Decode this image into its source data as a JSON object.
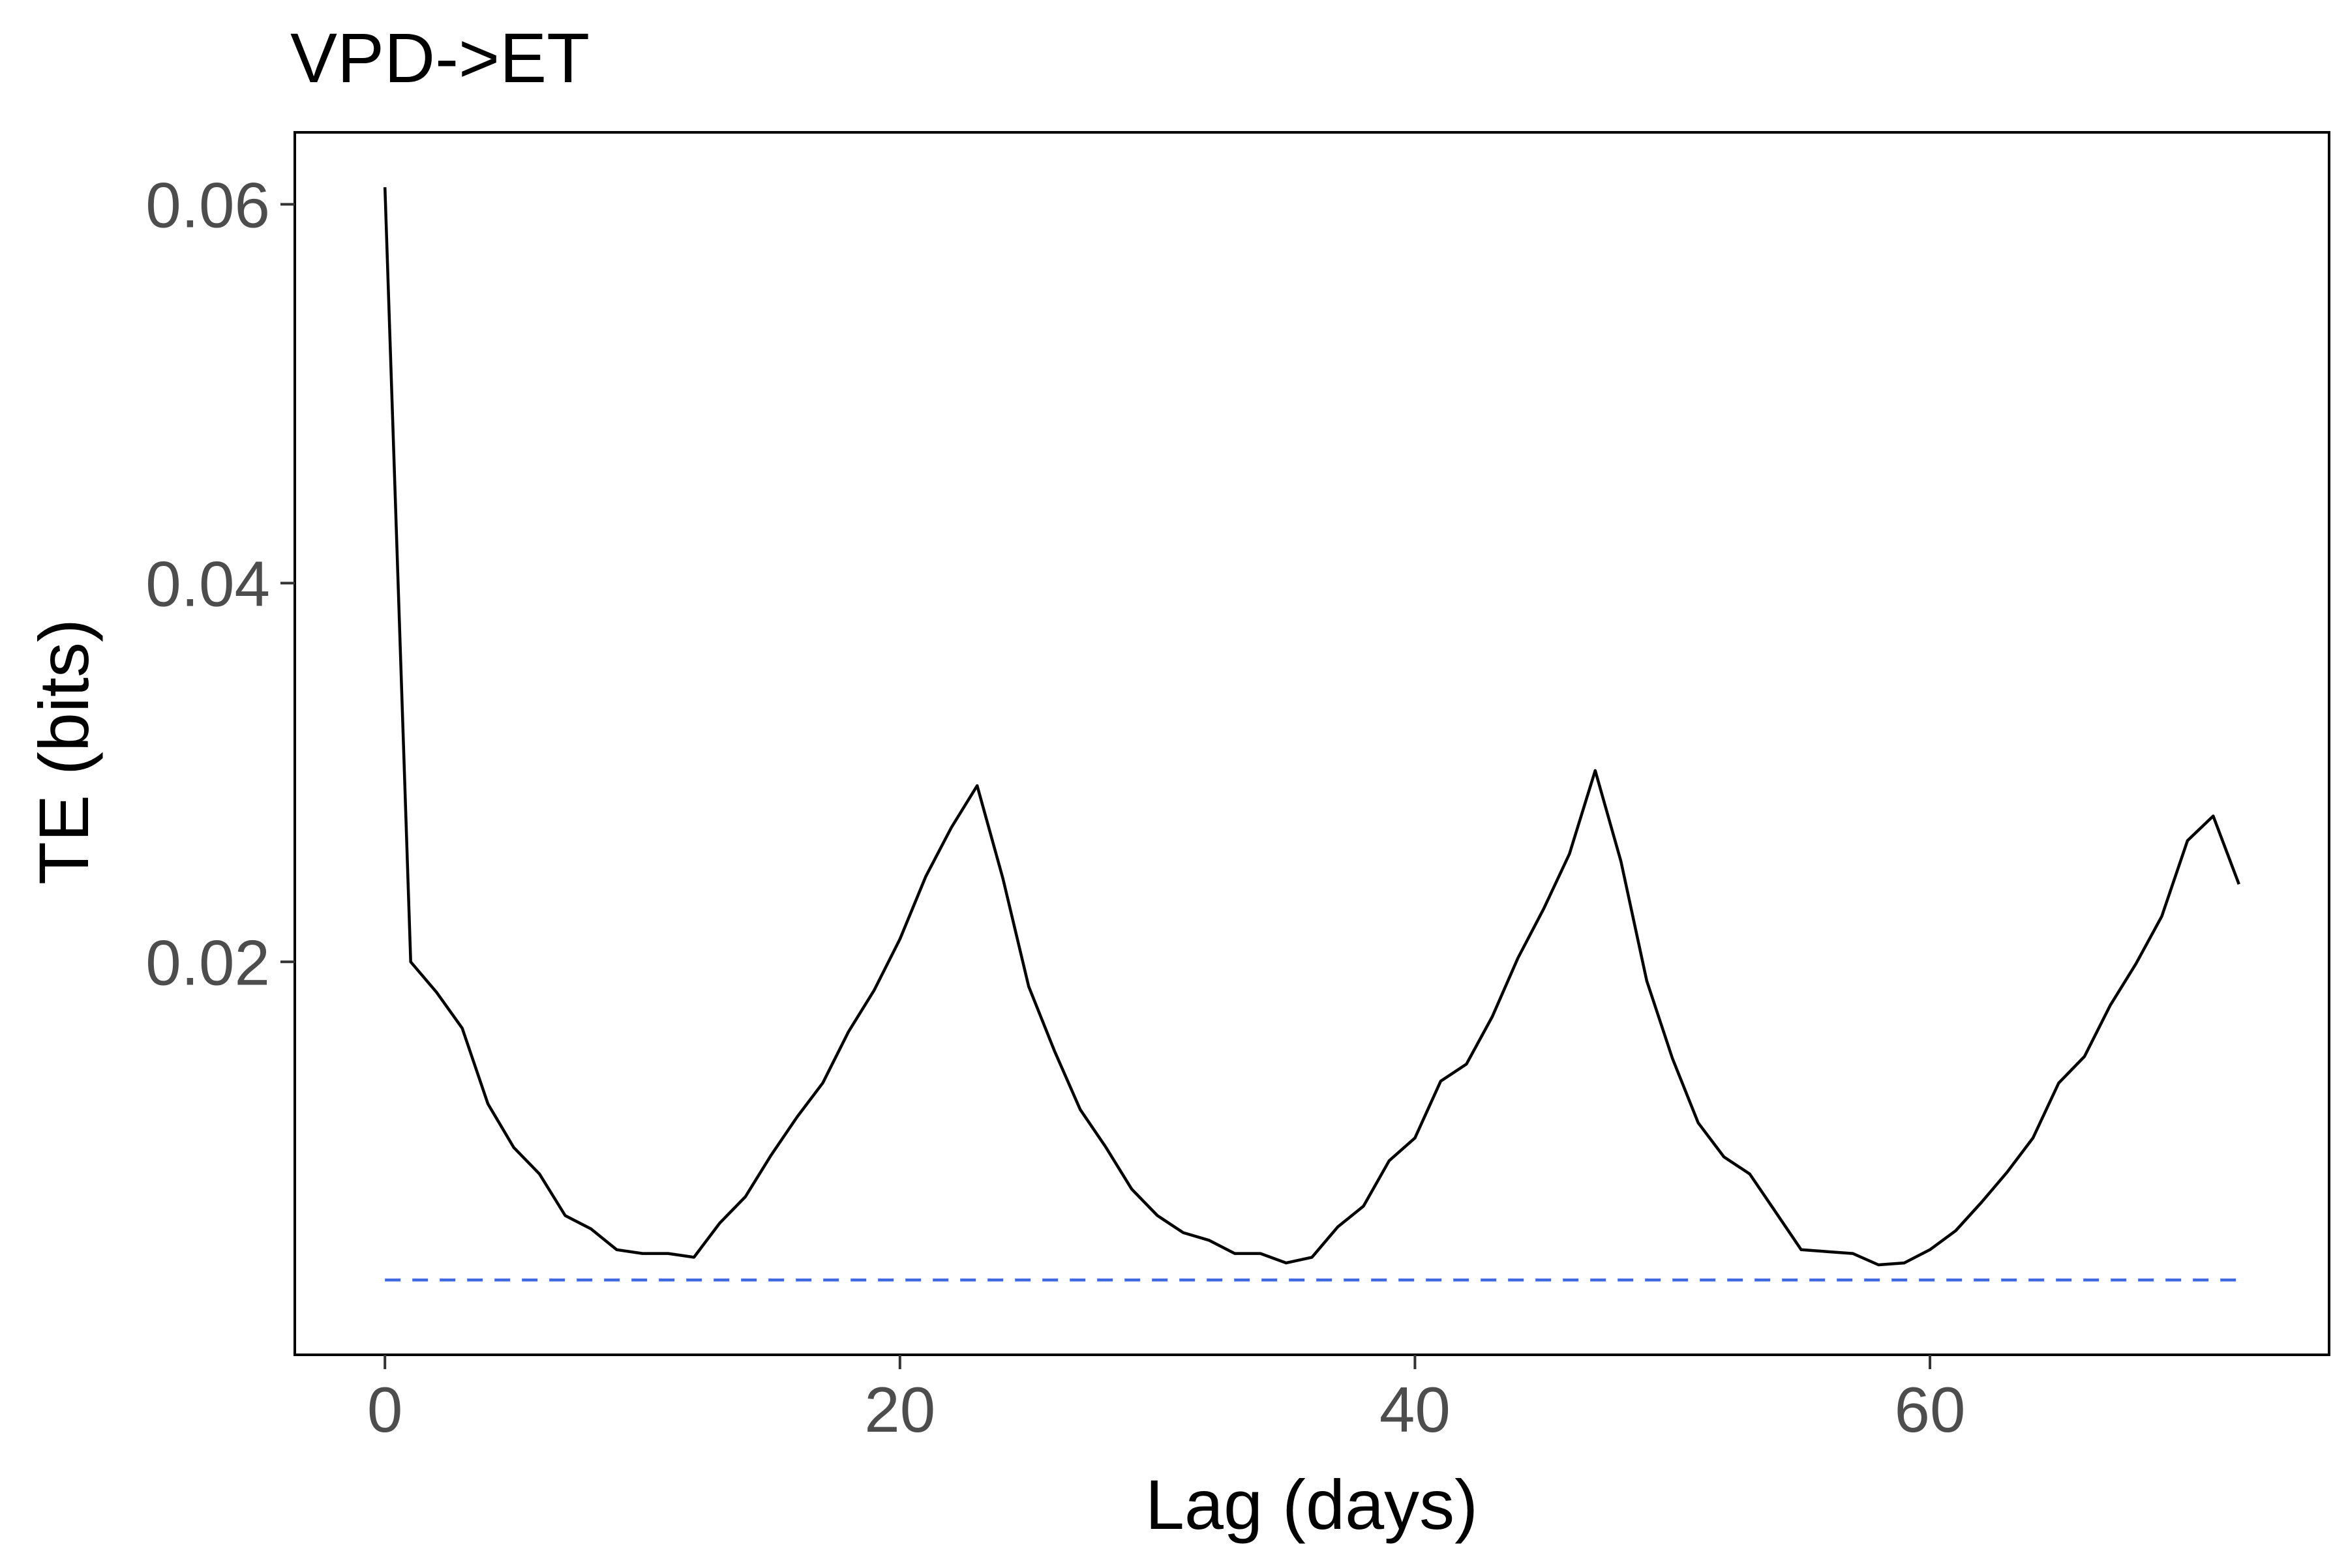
{
  "chart_data": {
    "type": "line",
    "title": "VPD->ET",
    "xlabel": "Lag (days)",
    "ylabel": "TE (bits)",
    "xlim": [
      -3.5,
      75.5
    ],
    "ylim": [
      -0.00075,
      0.0638
    ],
    "x_ticks": [
      0,
      20,
      40,
      60
    ],
    "x_tick_labels": [
      "0",
      "20",
      "40",
      "60"
    ],
    "y_ticks": [
      0.02,
      0.04,
      0.06
    ],
    "y_tick_labels": [
      "0.02",
      "0.04",
      "0.06"
    ],
    "grid": false,
    "legend": "none",
    "series": [
      {
        "color": "#000000",
        "dash": "solid",
        "x": [
          0,
          1,
          2,
          3,
          4,
          5,
          6,
          7,
          8,
          9,
          10,
          11,
          12,
          13,
          14,
          15,
          16,
          17,
          18,
          19,
          20,
          21,
          22,
          23,
          24,
          25,
          26,
          27,
          28,
          29,
          30,
          31,
          32,
          33,
          34,
          35,
          36,
          37,
          38,
          39,
          40,
          41,
          42,
          43,
          44,
          45,
          46,
          47,
          48,
          49,
          50,
          51,
          52,
          53,
          54,
          55,
          56,
          57,
          58,
          59,
          60,
          61,
          62,
          63,
          64,
          65,
          66,
          67,
          68,
          69,
          70,
          71,
          72
        ],
        "values": [
          0.0609,
          0.02,
          0.0184,
          0.0165,
          0.0125,
          0.0102,
          0.0088,
          0.0066,
          0.0059,
          0.0048,
          0.0046,
          0.0046,
          0.0044,
          0.0062,
          0.0076,
          0.0098,
          0.0118,
          0.0136,
          0.0163,
          0.0185,
          0.0212,
          0.0245,
          0.0271,
          0.0293,
          0.0244,
          0.0187,
          0.0153,
          0.0122,
          0.0102,
          0.008,
          0.0066,
          0.0057,
          0.0053,
          0.0046,
          0.0046,
          0.0041,
          0.0044,
          0.006,
          0.0071,
          0.0095,
          0.0107,
          0.0137,
          0.0146,
          0.0171,
          0.0202,
          0.0228,
          0.0257,
          0.0301,
          0.0253,
          0.019,
          0.0149,
          0.0115,
          0.0097,
          0.0088,
          0.0068,
          0.0048,
          0.0047,
          0.0046,
          0.004,
          0.0041,
          0.0048,
          0.0058,
          0.0073,
          0.0089,
          0.0107,
          0.0136,
          0.015,
          0.0177,
          0.0199,
          0.0224,
          0.0264,
          0.0277,
          0.0241
        ]
      },
      {
        "color": "#4169e1",
        "dash": "dashed",
        "x": [
          0,
          72
        ],
        "values": [
          0.0032,
          0.0032
        ]
      }
    ]
  }
}
